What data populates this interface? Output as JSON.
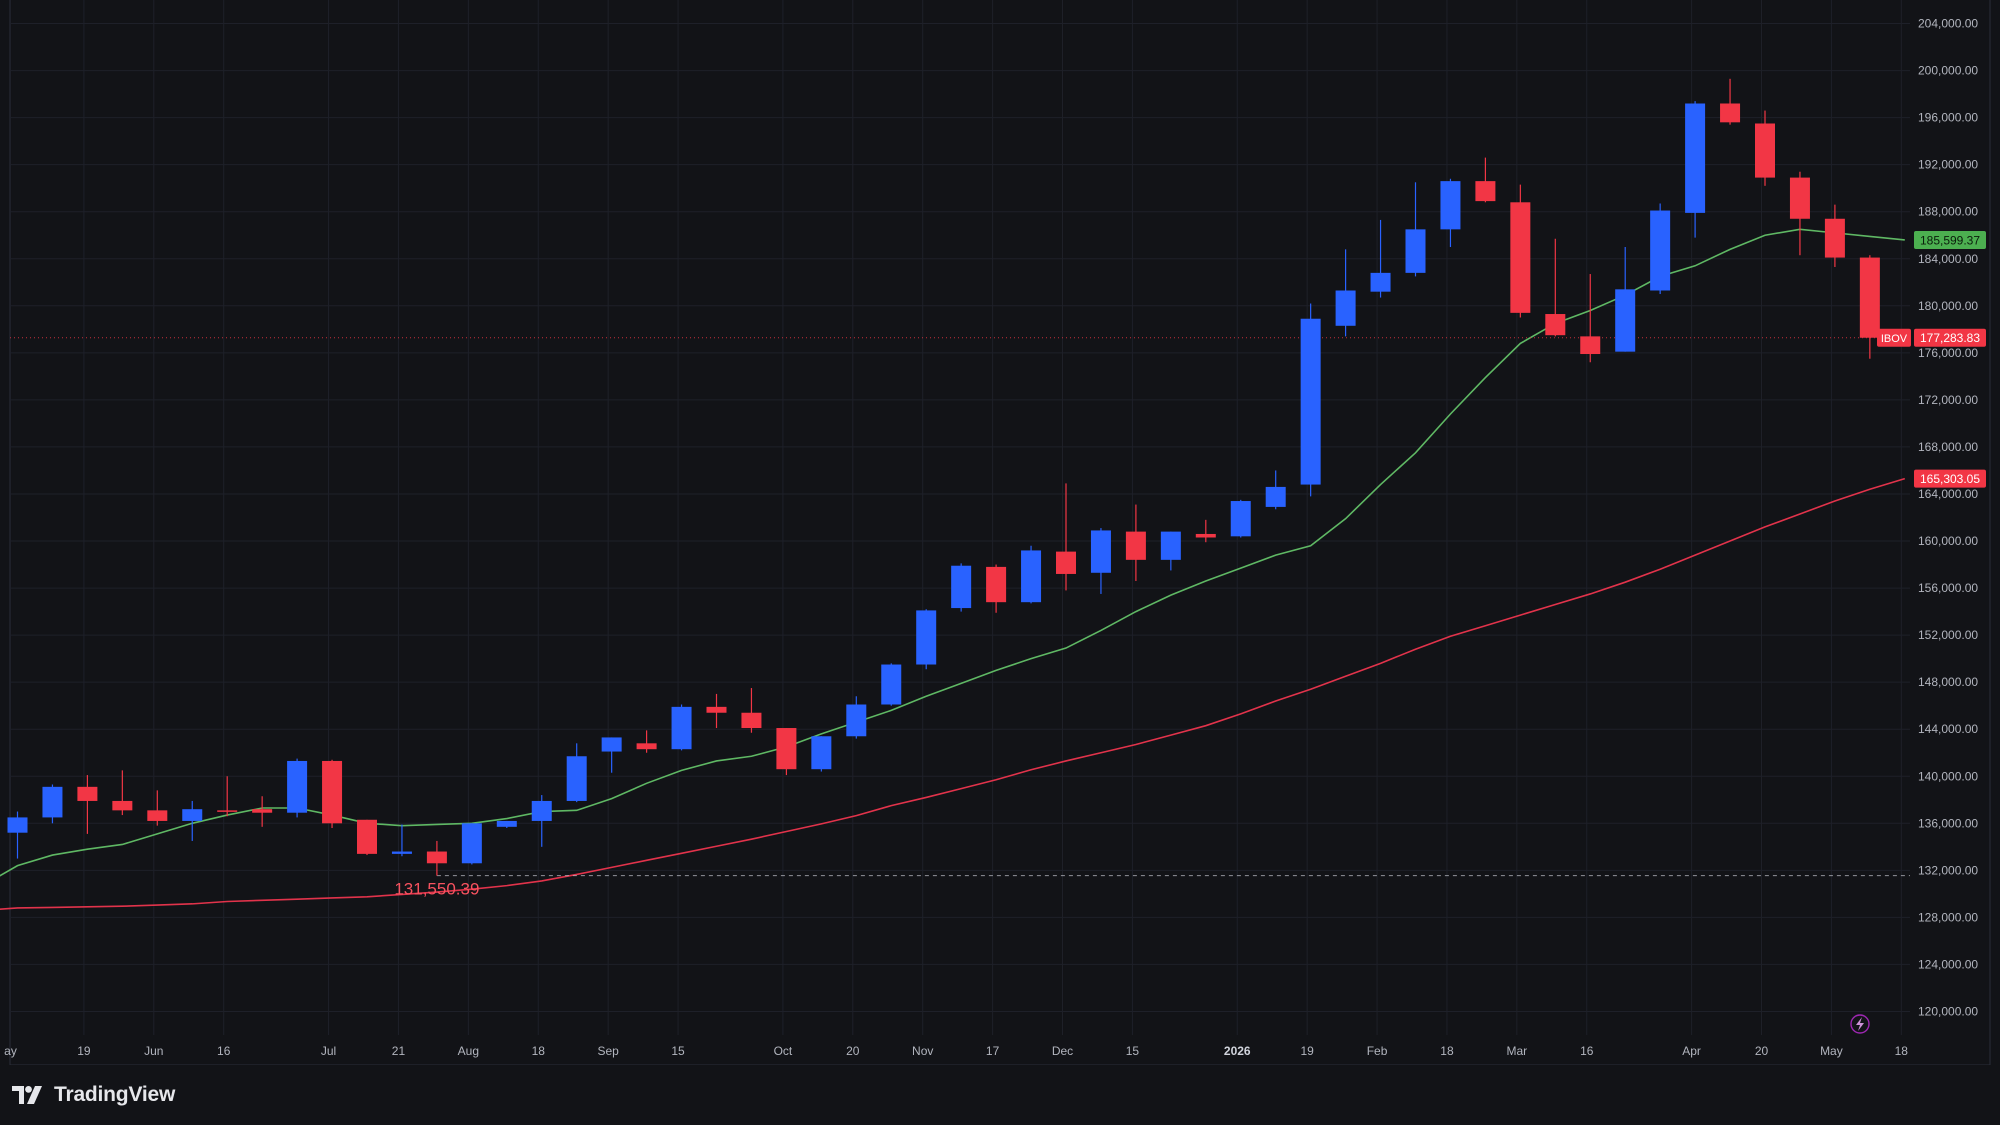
{
  "brand": {
    "name": "TradingView",
    "icon": "tradingview-logo-icon"
  },
  "chart_data": {
    "type": "candlestick",
    "symbol": "IBOV",
    "last_price": 177283.83,
    "last_price_label": "177,283.83",
    "ylim": [
      118000,
      206000
    ],
    "y_ticks": [
      120000,
      124000,
      128000,
      132000,
      136000,
      140000,
      144000,
      148000,
      152000,
      156000,
      160000,
      164000,
      168000,
      172000,
      176000,
      180000,
      184000,
      188000,
      192000,
      196000,
      200000,
      204000
    ],
    "y_tick_labels": [
      "120,000.00",
      "124,000.00",
      "128,000.00",
      "132,000.00",
      "136,000.00",
      "140,000.00",
      "144,000.00",
      "148,000.00",
      "152,000.00",
      "156,000.00",
      "160,000.00",
      "164,000.00",
      "168,000.00",
      "172,000.00",
      "176,000.00",
      "180,000.00",
      "184,000.00",
      "188,000.00",
      "192,000.00",
      "196,000.00",
      "200,000.00",
      "204,000.00"
    ],
    "x_ticks": [
      {
        "label": "ay",
        "slot": -0.2
      },
      {
        "label": "19",
        "slot": 1.9
      },
      {
        "label": "Jun",
        "slot": 3.9
      },
      {
        "label": "16",
        "slot": 5.9
      },
      {
        "label": "Jul",
        "slot": 8.9
      },
      {
        "label": "21",
        "slot": 10.9
      },
      {
        "label": "Aug",
        "slot": 12.9
      },
      {
        "label": "18",
        "slot": 14.9
      },
      {
        "label": "Sep",
        "slot": 16.9
      },
      {
        "label": "15",
        "slot": 18.9
      },
      {
        "label": "Oct",
        "slot": 21.9
      },
      {
        "label": "20",
        "slot": 23.9
      },
      {
        "label": "Nov",
        "slot": 25.9
      },
      {
        "label": "17",
        "slot": 27.9
      },
      {
        "label": "Dec",
        "slot": 29.9
      },
      {
        "label": "15",
        "slot": 31.9
      },
      {
        "label": "2026",
        "slot": 34.9,
        "bold": true
      },
      {
        "label": "19",
        "slot": 36.9
      },
      {
        "label": "Feb",
        "slot": 38.9
      },
      {
        "label": "18",
        "slot": 40.9
      },
      {
        "label": "Mar",
        "slot": 42.9
      },
      {
        "label": "16",
        "slot": 44.9
      },
      {
        "label": "Apr",
        "slot": 47.9
      },
      {
        "label": "20",
        "slot": 49.9
      },
      {
        "label": "May",
        "slot": 51.9
      },
      {
        "label": "18",
        "slot": 53.9
      }
    ],
    "candles": [
      {
        "o": 135200,
        "h": 137000,
        "l": 133000,
        "c": 136500
      },
      {
        "o": 136500,
        "h": 139300,
        "l": 136000,
        "c": 139100
      },
      {
        "o": 139100,
        "h": 140100,
        "l": 135100,
        "c": 137900
      },
      {
        "o": 137900,
        "h": 140500,
        "l": 136700,
        "c": 137100
      },
      {
        "o": 137100,
        "h": 138800,
        "l": 135800,
        "c": 136200
      },
      {
        "o": 136200,
        "h": 137900,
        "l": 134500,
        "c": 137200
      },
      {
        "o": 137100,
        "h": 140000,
        "l": 136600,
        "c": 137000
      },
      {
        "o": 137200,
        "h": 138300,
        "l": 135700,
        "c": 136900
      },
      {
        "o": 136900,
        "h": 141500,
        "l": 136500,
        "c": 141300
      },
      {
        "o": 141300,
        "h": 141400,
        "l": 135600,
        "c": 136000
      },
      {
        "o": 136300,
        "h": 136300,
        "l": 133300,
        "c": 133400
      },
      {
        "o": 133400,
        "h": 135900,
        "l": 133200,
        "c": 133600
      },
      {
        "o": 133600,
        "h": 134500,
        "l": 131550,
        "c": 132600
      },
      {
        "o": 132600,
        "h": 136000,
        "l": 132500,
        "c": 136000
      },
      {
        "o": 135700,
        "h": 136200,
        "l": 135600,
        "c": 136200
      },
      {
        "o": 136200,
        "h": 138400,
        "l": 134000,
        "c": 137900
      },
      {
        "o": 137900,
        "h": 142800,
        "l": 137800,
        "c": 141700
      },
      {
        "o": 142100,
        "h": 143300,
        "l": 140300,
        "c": 143300
      },
      {
        "o": 142800,
        "h": 143900,
        "l": 142000,
        "c": 142300
      },
      {
        "o": 142300,
        "h": 146100,
        "l": 142200,
        "c": 145900
      },
      {
        "o": 145900,
        "h": 147000,
        "l": 144100,
        "c": 145400
      },
      {
        "o": 145400,
        "h": 147500,
        "l": 143700,
        "c": 144100
      },
      {
        "o": 144100,
        "h": 144100,
        "l": 140100,
        "c": 140600
      },
      {
        "o": 140600,
        "h": 143400,
        "l": 140400,
        "c": 143400
      },
      {
        "o": 143400,
        "h": 146800,
        "l": 143200,
        "c": 146100
      },
      {
        "o": 146100,
        "h": 149600,
        "l": 146000,
        "c": 149500
      },
      {
        "o": 149500,
        "h": 154200,
        "l": 149100,
        "c": 154100
      },
      {
        "o": 154300,
        "h": 158100,
        "l": 154000,
        "c": 157900
      },
      {
        "o": 157800,
        "h": 158000,
        "l": 153900,
        "c": 154800
      },
      {
        "o": 154800,
        "h": 159600,
        "l": 154700,
        "c": 159200
      },
      {
        "o": 159100,
        "h": 164900,
        "l": 155800,
        "c": 157200
      },
      {
        "o": 157300,
        "h": 161100,
        "l": 155500,
        "c": 160900
      },
      {
        "o": 160800,
        "h": 163100,
        "l": 156600,
        "c": 158400
      },
      {
        "o": 158400,
        "h": 160800,
        "l": 157500,
        "c": 160800
      },
      {
        "o": 160600,
        "h": 161800,
        "l": 159900,
        "c": 160300
      },
      {
        "o": 160400,
        "h": 163500,
        "l": 160300,
        "c": 163400
      },
      {
        "o": 162900,
        "h": 166000,
        "l": 162700,
        "c": 164600
      },
      {
        "o": 164800,
        "h": 180200,
        "l": 163800,
        "c": 178900
      },
      {
        "o": 178300,
        "h": 184800,
        "l": 177400,
        "c": 181300
      },
      {
        "o": 181200,
        "h": 187300,
        "l": 180700,
        "c": 182800
      },
      {
        "o": 182800,
        "h": 190500,
        "l": 182500,
        "c": 186500
      },
      {
        "o": 186500,
        "h": 190800,
        "l": 185000,
        "c": 190600
      },
      {
        "o": 190600,
        "h": 192600,
        "l": 188800,
        "c": 188900
      },
      {
        "o": 188800,
        "h": 190300,
        "l": 179000,
        "c": 179400
      },
      {
        "o": 179300,
        "h": 185700,
        "l": 177400,
        "c": 177500
      },
      {
        "o": 177400,
        "h": 182700,
        "l": 175200,
        "c": 175900
      },
      {
        "o": 176100,
        "h": 185000,
        "l": 176100,
        "c": 181400
      },
      {
        "o": 181300,
        "h": 188700,
        "l": 181000,
        "c": 188100
      },
      {
        "o": 187900,
        "h": 197400,
        "l": 185800,
        "c": 197200
      },
      {
        "o": 197200,
        "h": 199300,
        "l": 195400,
        "c": 195600
      },
      {
        "o": 195500,
        "h": 196600,
        "l": 190200,
        "c": 190900
      },
      {
        "o": 190900,
        "h": 191400,
        "l": 184300,
        "c": 187400
      },
      {
        "o": 187400,
        "h": 188600,
        "l": 183300,
        "c": 184100
      },
      {
        "o": 184100,
        "h": 184300,
        "l": 175500,
        "c": 177283.83
      }
    ],
    "moving_averages": [
      {
        "color": "#5fb864",
        "last_label": "185,599.37",
        "last": 185599.37,
        "values": [
          130700,
          132400,
          133300,
          133800,
          134200,
          135100,
          136000,
          136700,
          137300,
          137300,
          136700,
          136000,
          135800,
          135900,
          136000,
          136400,
          137000,
          137100,
          138100,
          139400,
          140500,
          141300,
          141700,
          142500,
          143600,
          144600,
          145600,
          146800,
          147900,
          149000,
          150000,
          150900,
          152400,
          154000,
          155400,
          156600,
          157700,
          158800,
          159600,
          161900,
          164800,
          167500,
          170800,
          173900,
          176800,
          178500,
          179600,
          180900,
          182500,
          183400,
          184800,
          186000,
          186500,
          186200,
          185900,
          185599.37
        ]
      },
      {
        "color": "#e2334b",
        "last_label": "165,303.05",
        "last": 165303.05,
        "values": [
          128600,
          128800,
          128850,
          128900,
          128950,
          129050,
          129150,
          129350,
          129450,
          129550,
          129650,
          129750,
          129950,
          130150,
          130400,
          130700,
          131100,
          131650,
          132250,
          132850,
          133450,
          134050,
          134650,
          135300,
          135950,
          136650,
          137500,
          138200,
          138950,
          139700,
          140550,
          141300,
          142000,
          142700,
          143500,
          144300,
          145300,
          146400,
          147400,
          148500,
          149600,
          150800,
          151900,
          152800,
          153700,
          154600,
          155500,
          156500,
          157600,
          158800,
          160000,
          161200,
          162300,
          163400,
          164400,
          165303.05
        ]
      }
    ],
    "low_marker": {
      "value": 131550.39,
      "label": "131,550.39"
    },
    "colors": {
      "up": "#2962ff",
      "down": "#f23645",
      "grid": "#1e2029",
      "axis_text": "#b2b5be",
      "background": "#121317"
    }
  }
}
